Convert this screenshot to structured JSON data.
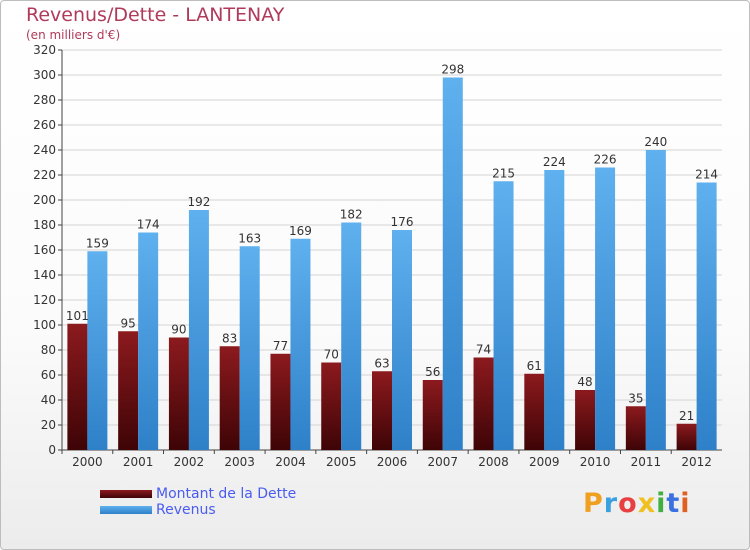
{
  "chart_data": {
    "type": "bar",
    "title": "Revenus/Dette - LANTENAY",
    "subtitle": "(en milliers d'€)",
    "xlabel": "",
    "ylabel": "",
    "categories": [
      "2000",
      "2001",
      "2002",
      "2003",
      "2004",
      "2005",
      "2006",
      "2007",
      "2008",
      "2009",
      "2010",
      "2011",
      "2012"
    ],
    "series": [
      {
        "name": "Montant de la Dette",
        "color": "#7a0f14",
        "values": [
          101,
          95,
          90,
          83,
          77,
          70,
          63,
          56,
          74,
          61,
          48,
          35,
          21
        ]
      },
      {
        "name": "Revenus",
        "color": "#55a6e6",
        "values": [
          159,
          174,
          192,
          163,
          169,
          182,
          176,
          298,
          215,
          224,
          226,
          240,
          214
        ]
      }
    ],
    "ylim": [
      0,
      320
    ],
    "ytick_step": 20,
    "grid": true,
    "legend": "bottom-left"
  },
  "branding": {
    "logo_text": "Proxiti",
    "logo_colors": [
      "#f0a020",
      "#3aa0e0",
      "#e84040",
      "#f0c020",
      "#40b040",
      "#3a70e0",
      "#e06020"
    ]
  }
}
